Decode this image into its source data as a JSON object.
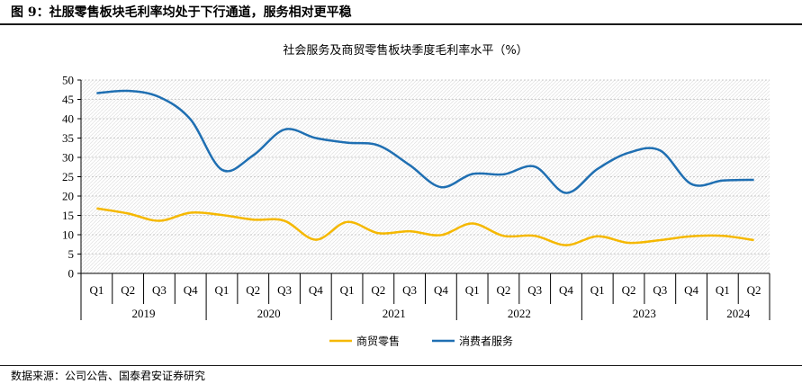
{
  "header": {
    "figure_title": "图 9：社服零售板块毛利率均处于下行通道，服务相对更平稳"
  },
  "footer": {
    "source": "数据来源：公司公告、国泰君安证券研究"
  },
  "chart_data": {
    "type": "line",
    "title": "社会服务及商贸零售板块季度毛利率水平（%）",
    "xlabel": "",
    "ylabel": "",
    "ylim": [
      0,
      50
    ],
    "yticks": [
      0,
      5,
      10,
      15,
      20,
      25,
      30,
      35,
      40,
      45,
      50
    ],
    "grid": true,
    "legend_position": "bottom",
    "categories": [
      "Q1",
      "Q2",
      "Q3",
      "Q4",
      "Q1",
      "Q2",
      "Q3",
      "Q4",
      "Q1",
      "Q2",
      "Q3",
      "Q4",
      "Q1",
      "Q2",
      "Q3",
      "Q4",
      "Q1",
      "Q2",
      "Q3",
      "Q4",
      "Q1",
      "Q2"
    ],
    "year_groups": [
      {
        "label": "2019",
        "count": 4
      },
      {
        "label": "2020",
        "count": 4
      },
      {
        "label": "2021",
        "count": 4
      },
      {
        "label": "2022",
        "count": 4
      },
      {
        "label": "2023",
        "count": 4
      },
      {
        "label": "2024",
        "count": 2
      }
    ],
    "series": [
      {
        "name": "商贸零售",
        "color": "#F5B800",
        "values": [
          16.8,
          15.5,
          13.6,
          15.7,
          15.1,
          13.9,
          13.6,
          8.7,
          13.3,
          10.4,
          10.9,
          9.9,
          12.9,
          9.7,
          9.7,
          7.3,
          9.6,
          7.9,
          8.6,
          9.6,
          9.7,
          8.6
        ]
      },
      {
        "name": "消费者服务",
        "color": "#1F6FB2",
        "values": [
          46.6,
          47.2,
          45.6,
          39.8,
          26.8,
          30.5,
          37.2,
          35.0,
          33.8,
          33.1,
          28.0,
          22.3,
          25.7,
          25.6,
          27.6,
          20.8,
          27.0,
          31.2,
          31.8,
          23.1,
          24.0,
          24.2
        ]
      }
    ]
  }
}
